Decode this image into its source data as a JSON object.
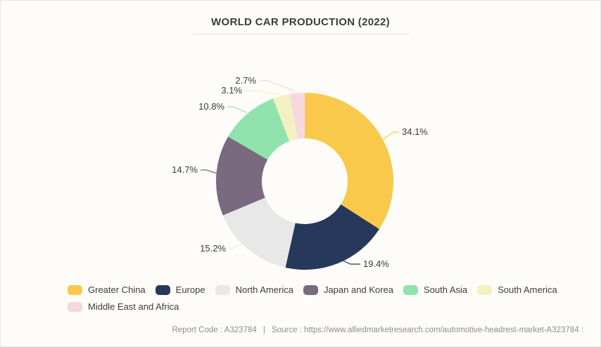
{
  "chart_data": {
    "type": "pie",
    "variant": "donut",
    "title": "WORLD CAR PRODUCTION (2022)",
    "legend_position": "bottom",
    "direction": "clockwise",
    "start_angle_deg": 0,
    "slices": [
      {
        "label": "Greater China",
        "value": 34.1,
        "display": "34.1%",
        "color": "#F9C94B"
      },
      {
        "label": "Europe",
        "value": 19.4,
        "display": "19.4%",
        "color": "#27395B"
      },
      {
        "label": "North America",
        "value": 15.2,
        "display": "15.2%",
        "color": "#E9E8E8"
      },
      {
        "label": "Japan and Korea",
        "value": 14.7,
        "display": "14.7%",
        "color": "#796A7F"
      },
      {
        "label": "South Asia",
        "value": 10.8,
        "display": "10.8%",
        "color": "#90E3AD"
      },
      {
        "label": "South America",
        "value": 3.1,
        "display": "3.1%",
        "color": "#F3F1C2"
      },
      {
        "label": "Middle East and Africa",
        "value": 2.7,
        "display": "2.7%",
        "color": "#F6D8DD"
      }
    ],
    "label_color": "#3A3A3A"
  },
  "footer": {
    "report_code": "Report Code : A323784",
    "separator": "|",
    "source": "Source : https://www.alliedmarketresearch.com/automotive-headrest-market-A323784 :"
  }
}
